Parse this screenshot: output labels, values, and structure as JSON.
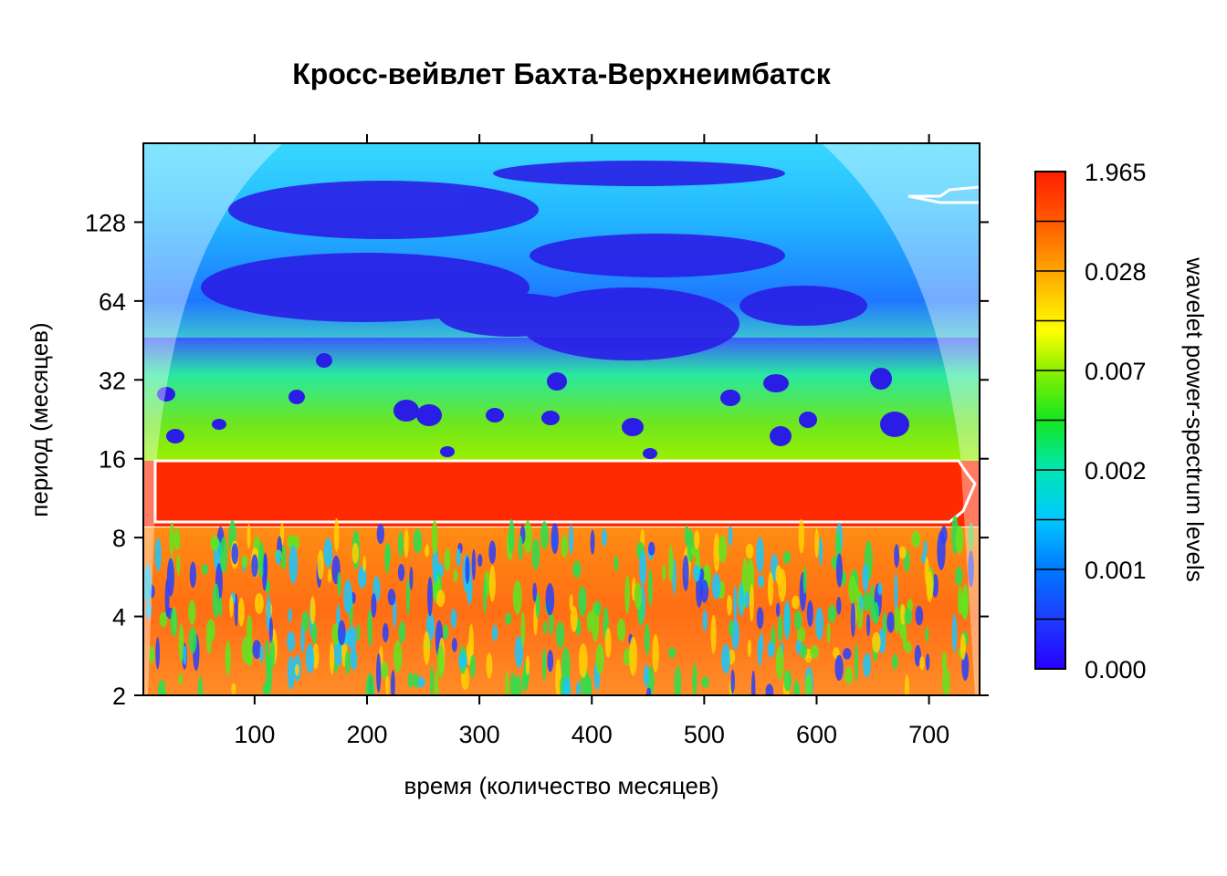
{
  "chart_data": {
    "type": "heatmap",
    "title": "Кросс-вейвлет Бахта-Верхнеимбатск",
    "xlabel": "время (количество месяцев)",
    "ylabel": "период (месяцев)",
    "x_range": [
      1,
      745
    ],
    "x_ticks": [
      100,
      200,
      300,
      400,
      500,
      600,
      700
    ],
    "y_scale": "log2",
    "y_range": [
      2,
      256
    ],
    "y_ticks": [
      2,
      4,
      8,
      16,
      32,
      64,
      128
    ],
    "significant_band_period": [
      9,
      16
    ],
    "colorbar": {
      "label": "wavelet power-spectrum levels",
      "tick_labels": [
        "0.000",
        "0.001",
        "0.002",
        "0.007",
        "0.028",
        "1.965"
      ],
      "colors": [
        "#2b00ff",
        "#0050ff",
        "#00d7ff",
        "#00e676",
        "#32d400",
        "#dcff00",
        "#ffd400",
        "#ff8c00",
        "#ff2800"
      ]
    },
    "grid": false,
    "cone_of_influence": true
  }
}
